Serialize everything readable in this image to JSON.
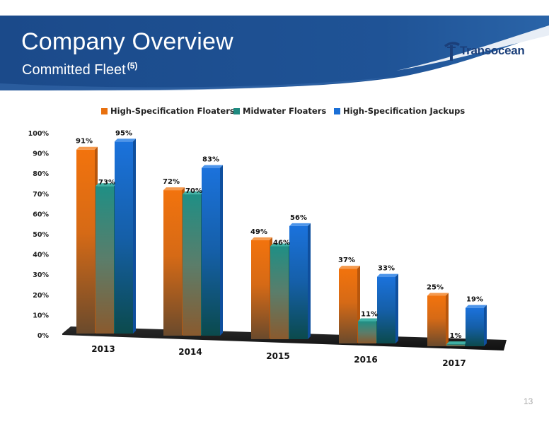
{
  "header": {
    "title": "Company Overview",
    "subtitle": "Committed Fleet",
    "subtitle_footnote": "(5)",
    "logo_text": "Transocean",
    "brand_color": "#1b4a8a"
  },
  "page_number": "13",
  "chart_data": {
    "type": "bar",
    "three_d": true,
    "categories": [
      "2013",
      "2014",
      "2015",
      "2016",
      "2017"
    ],
    "series": [
      {
        "name": "High-Specification Floaters",
        "values": [
          91,
          72,
          49,
          37,
          25
        ],
        "labels": [
          "91%",
          "72%",
          "49%",
          "37%",
          "25%"
        ],
        "color": "#e8700f"
      },
      {
        "name": "Midwater Floaters",
        "values": [
          73,
          70,
          46,
          11,
          1
        ],
        "labels": [
          "73%",
          "70%",
          "46%",
          "11%",
          "1%"
        ],
        "color": "#1f8a80"
      },
      {
        "name": "High-Specification Jackups",
        "values": [
          95,
          83,
          56,
          33,
          19
        ],
        "labels": [
          "95%",
          "83%",
          "56%",
          "33%",
          "19%"
        ],
        "color": "#1a6fd6"
      }
    ],
    "ylim": [
      0,
      100
    ],
    "yticks": [
      0,
      10,
      20,
      30,
      40,
      50,
      60,
      70,
      80,
      90,
      100
    ],
    "ytick_labels": [
      "0%",
      "10%",
      "20%",
      "30%",
      "40%",
      "50%",
      "60%",
      "70%",
      "80%",
      "90%",
      "100%"
    ],
    "legend_position": "top",
    "grid": false
  }
}
